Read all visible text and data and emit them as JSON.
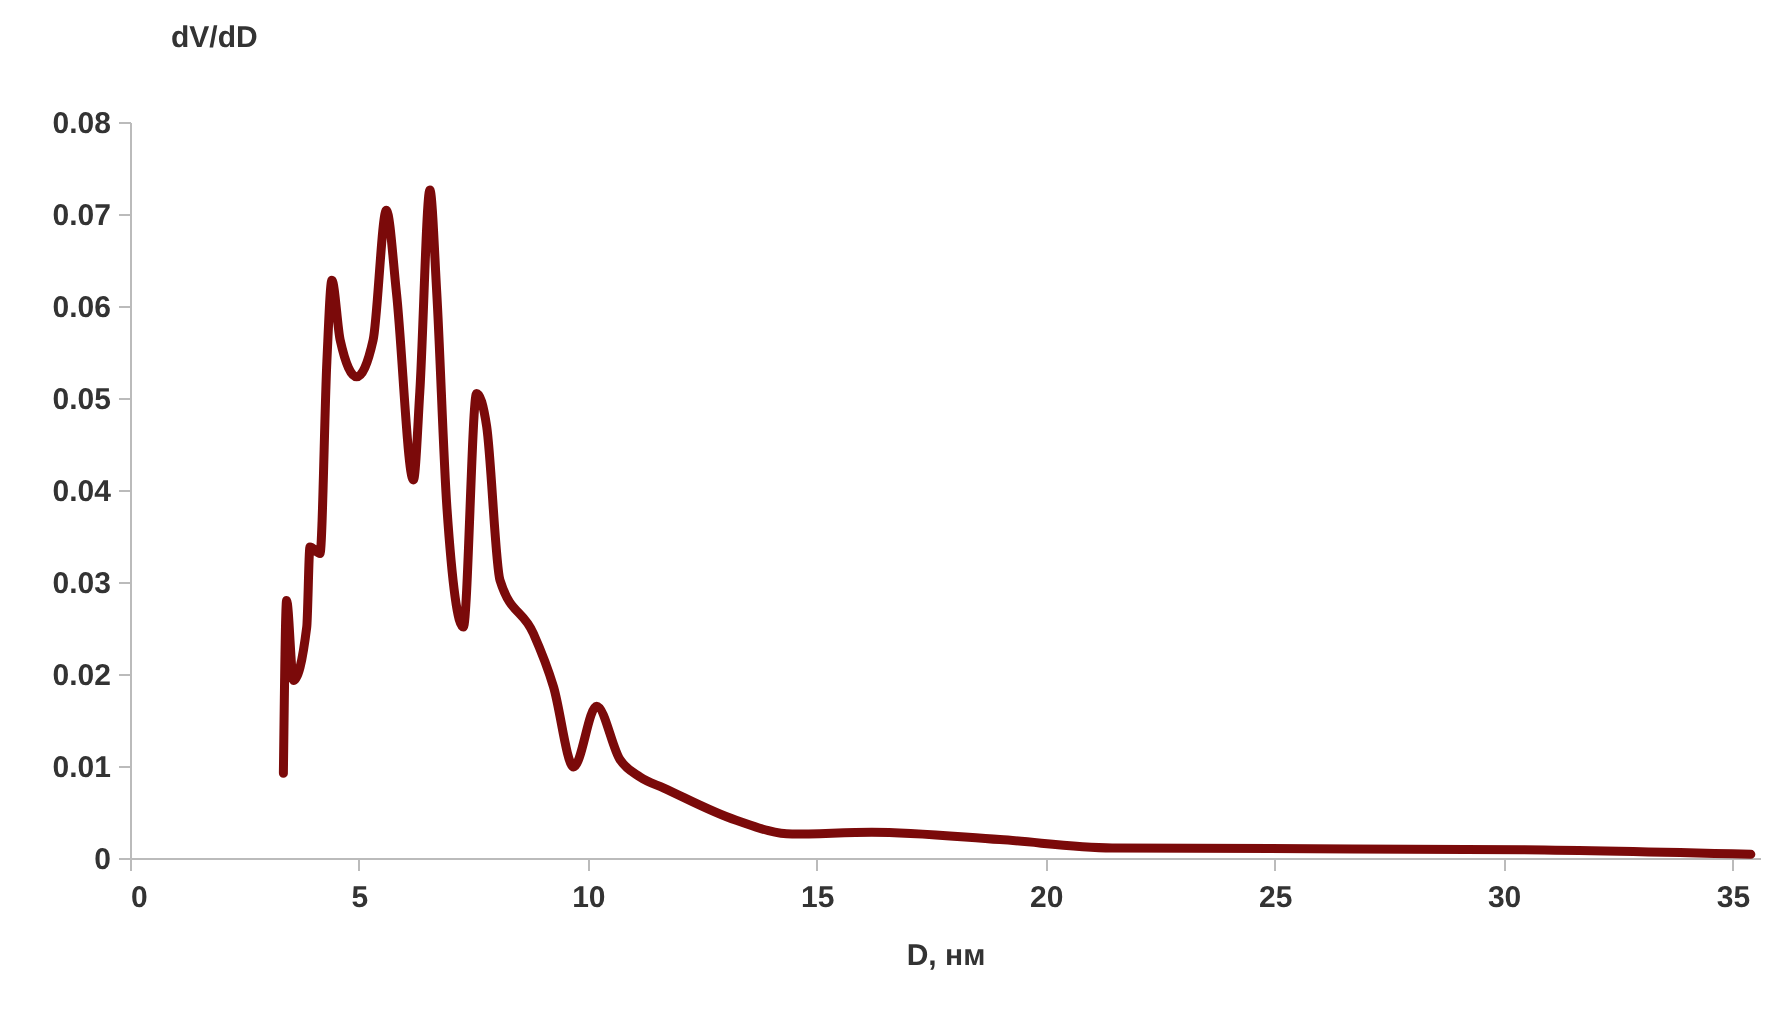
{
  "chart_data": {
    "type": "line",
    "xlabel": "D, нм",
    "ylabel": "dV/dD",
    "x": [
      3.35,
      3.42,
      3.57,
      3.86,
      3.93,
      4.15,
      4.3,
      4.41,
      4.59,
      4.95,
      5.31,
      5.6,
      5.82,
      6.19,
      6.33,
      6.55,
      6.7,
      6.92,
      7.28,
      7.57,
      7.79,
      8.08,
      8.81,
      9.25,
      9.69,
      10.19,
      10.7,
      11.14,
      11.66,
      13.24,
      14.46,
      16.2,
      19.0,
      21.45,
      30.4,
      35.4
    ],
    "series": [
      {
        "color": "#7b0a0a",
        "values": [
          0.0092,
          0.028,
          0.0193,
          0.0251,
          0.0338,
          0.0331,
          0.054,
          0.0628,
          0.0563,
          0.0523,
          0.0563,
          0.0704,
          0.0614,
          0.0411,
          0.0507,
          0.0726,
          0.0614,
          0.0382,
          0.0251,
          0.0505,
          0.0469,
          0.0302,
          0.0244,
          0.0186,
          0.0099,
          0.0165,
          0.0107,
          0.0088,
          0.0076,
          0.0041,
          0.0026,
          0.0028,
          0.002,
          0.0011,
          0.0009,
          0.0004
        ]
      }
    ],
    "xlim": [
      0,
      35.6
    ],
    "xticks": [
      0,
      5,
      10,
      15,
      20,
      25,
      30,
      35
    ],
    "ylim": [
      0,
      0.08
    ],
    "yticks": [
      0,
      0.01,
      0.02,
      0.03,
      0.04,
      0.05,
      0.06,
      0.07,
      0.08
    ],
    "grid": false,
    "marker": "none",
    "line_style": "solid"
  }
}
